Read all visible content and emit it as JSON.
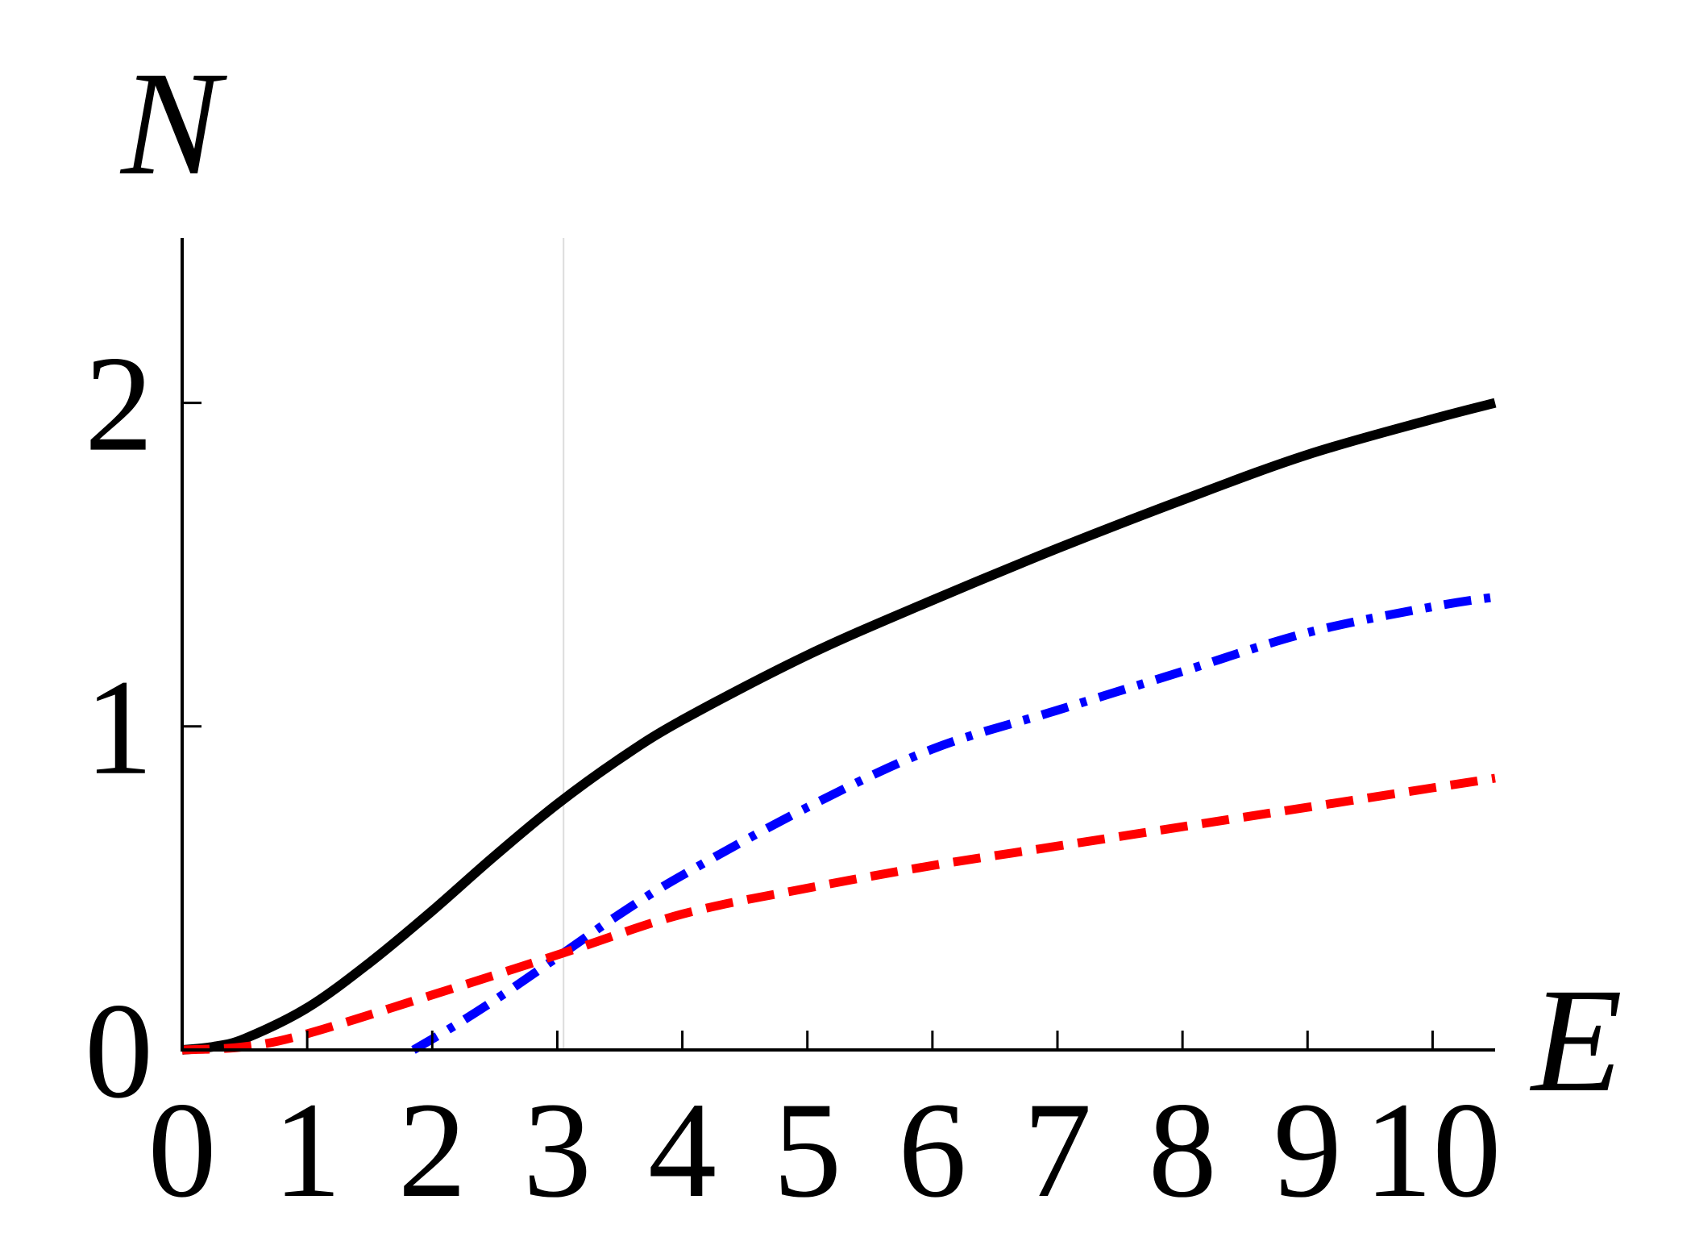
{
  "chart_data": {
    "type": "line",
    "xlabel": "E",
    "ylabel": "N",
    "xlim": [
      0,
      10.5
    ],
    "ylim": [
      0,
      2.5
    ],
    "x_ticks": [
      "0",
      "1",
      "2",
      "3",
      "4",
      "5",
      "6",
      "7",
      "8",
      "9",
      "10"
    ],
    "y_ticks": [
      "0",
      "1",
      "2"
    ],
    "vertical_reference_line_x": 3.05,
    "grid": false,
    "legend": "none",
    "series": [
      {
        "style": "solid",
        "color": "#000000",
        "points": [
          [
            0,
            0
          ],
          [
            0.25,
            0.01
          ],
          [
            0.5,
            0.035
          ],
          [
            1,
            0.13
          ],
          [
            1.5,
            0.27
          ],
          [
            2,
            0.43
          ],
          [
            2.5,
            0.6
          ],
          [
            3,
            0.76
          ],
          [
            3.5,
            0.9
          ],
          [
            4,
            1.02
          ],
          [
            5,
            1.22
          ],
          [
            6,
            1.39
          ],
          [
            7,
            1.55
          ],
          [
            8,
            1.7
          ],
          [
            9,
            1.84
          ],
          [
            10,
            1.95
          ],
          [
            10.5,
            2.0
          ]
        ]
      },
      {
        "style": "dash-dot",
        "color": "#0000ff",
        "points": [
          [
            1.85,
            0
          ],
          [
            2.2,
            0.08
          ],
          [
            2.6,
            0.18
          ],
          [
            3.05,
            0.3
          ],
          [
            3.5,
            0.42
          ],
          [
            4,
            0.54
          ],
          [
            5,
            0.75
          ],
          [
            6,
            0.93
          ],
          [
            7,
            1.05
          ],
          [
            8,
            1.17
          ],
          [
            9,
            1.29
          ],
          [
            10,
            1.37
          ],
          [
            10.5,
            1.4
          ]
        ]
      },
      {
        "style": "dashed",
        "color": "#ff0000",
        "points": [
          [
            0,
            0
          ],
          [
            0.5,
            0.01
          ],
          [
            1,
            0.05
          ],
          [
            2,
            0.17
          ],
          [
            3.05,
            0.3
          ],
          [
            4,
            0.42
          ],
          [
            5,
            0.5
          ],
          [
            6,
            0.57
          ],
          [
            7,
            0.63
          ],
          [
            8,
            0.69
          ],
          [
            9,
            0.75
          ],
          [
            10,
            0.81
          ],
          [
            10.5,
            0.84
          ]
        ]
      }
    ]
  }
}
